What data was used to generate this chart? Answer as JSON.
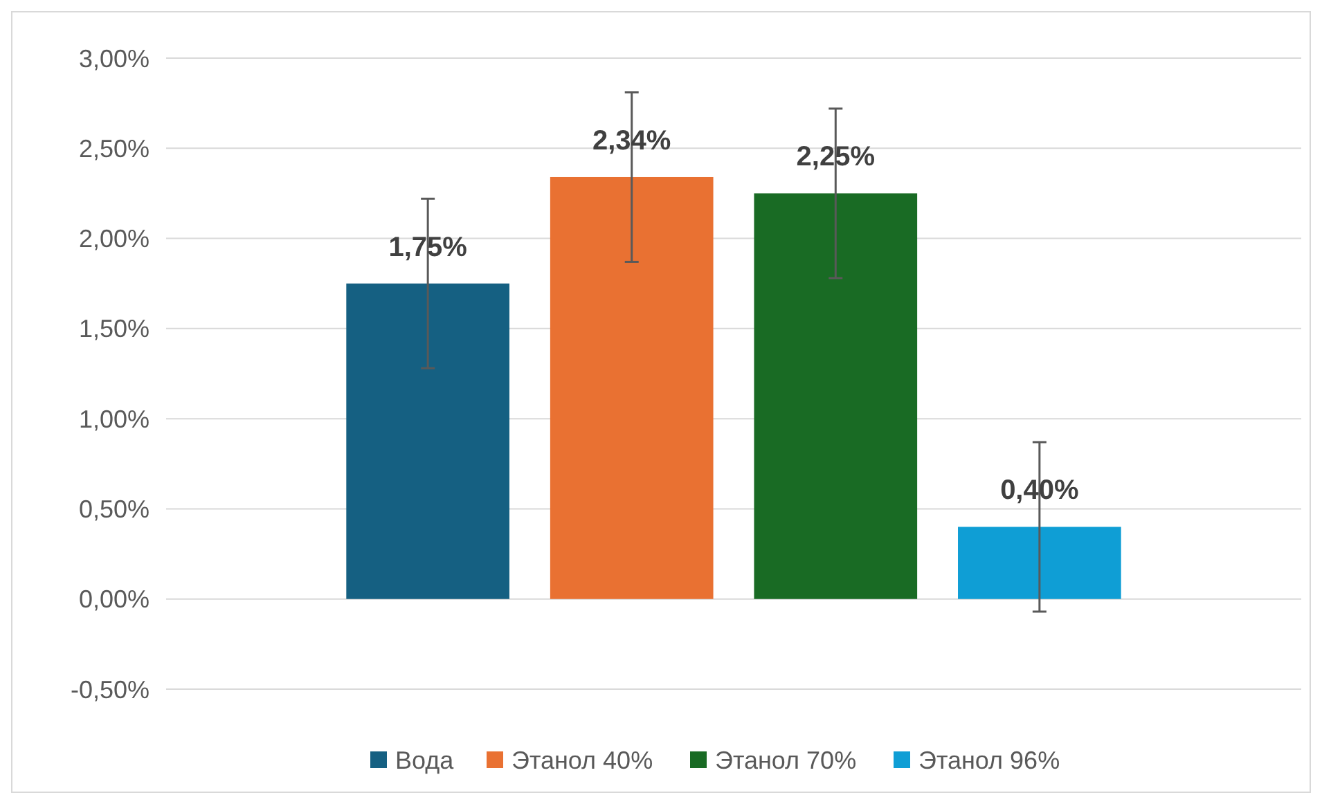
{
  "chart_data": {
    "type": "bar",
    "categories": [
      null
    ],
    "series": [
      {
        "name": "Вода",
        "color": "#156082",
        "values": [
          1.75
        ],
        "errors": [
          0.47
        ],
        "value_labels": [
          "1,75%"
        ]
      },
      {
        "name": "Этанол 40%",
        "color": "#e97132",
        "values": [
          2.34
        ],
        "errors": [
          0.47
        ],
        "value_labels": [
          "2,34%"
        ]
      },
      {
        "name": "Этанол 70%",
        "color": "#196b24",
        "values": [
          2.25
        ],
        "errors": [
          0.47
        ],
        "value_labels": [
          "2,25%"
        ]
      },
      {
        "name": "Этанол 96%",
        "color": "#0f9ed5",
        "values": [
          0.4
        ],
        "errors": [
          0.47
        ],
        "value_labels": [
          "0,40%"
        ]
      }
    ],
    "ylim": [
      -0.5,
      3
    ],
    "yticks": [
      {
        "value": -0.5,
        "label": "-0,50%"
      },
      {
        "value": 0,
        "label": "0,00%"
      },
      {
        "value": 0.5,
        "label": "0,50%"
      },
      {
        "value": 1,
        "label": "1,00%"
      },
      {
        "value": 1.5,
        "label": "1,50%"
      },
      {
        "value": 2,
        "label": "2,00%"
      },
      {
        "value": 2.5,
        "label": "2,50%"
      },
      {
        "value": 3,
        "label": "3,00%"
      }
    ],
    "grid": "y",
    "legend": "bottom"
  }
}
